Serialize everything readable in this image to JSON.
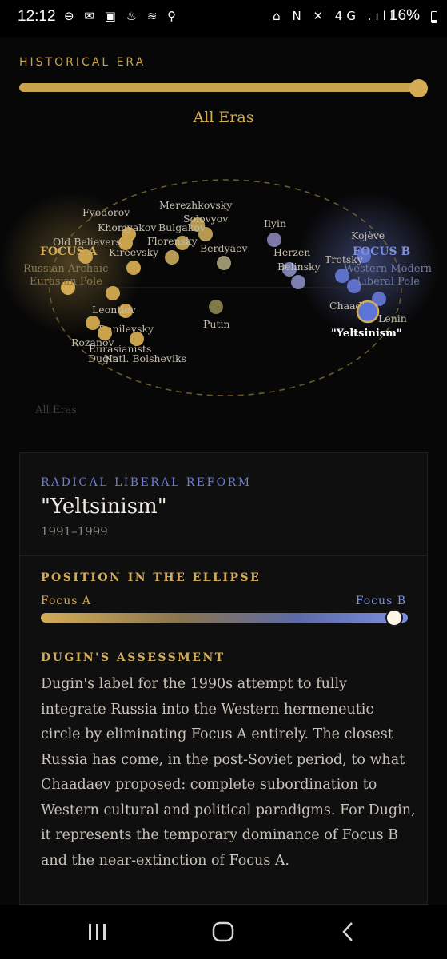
{
  "status_bar": {
    "time": "12:12",
    "left_icons": "⊖ ✉ ▣ ♨ ≋ ⚲",
    "right_icons": "⌂ N ✕ 4G .ıll",
    "battery": "16%"
  },
  "era": {
    "label": "HISTORICAL ERA",
    "selected": "All Eras",
    "slider_fraction": 1.0
  },
  "ellipse": {
    "corner_label": "All Eras",
    "focus_a_label": "FOCUS A",
    "focus_b_label": "FOCUS B",
    "pole_a_lines": [
      "Russian Archaic",
      "Eurasian Pole"
    ],
    "pole_b_lines": [
      "Western Modern",
      "Liberal Pole"
    ],
    "gold_color": "#d3ac55",
    "blue_color": "#7c8ee0",
    "node_labels": [
      "Fyodorov",
      "Merezhkovsky",
      "Solovyov",
      "Khomyakov",
      "Bulgakov",
      "Old Believers",
      "Florensky",
      "Kireevsky",
      "Berdyaev",
      "Ilyin",
      "Kojève",
      "Herzen",
      "Trotsky",
      "Belinsky",
      "Leontiev",
      "Danilevsky",
      "Putin",
      "Chaadaev",
      "Lenin",
      "\"Yeltsinism\"",
      "Rozanov",
      "Eurasianists",
      "Dugin",
      "Natl. Bolsheviks"
    ]
  },
  "card": {
    "category": "RADICAL LIBERAL REFORM",
    "title": "\"Yeltsinism\"",
    "years": "1991–1999",
    "position_heading": "POSITION IN THE ELLIPSE",
    "focus_a": "Focus A",
    "focus_b": "Focus B",
    "position_fraction": 0.96,
    "assessment_heading": "DUGIN'S ASSESSMENT",
    "assessment": "Dugin's label for the 1990s attempt to fully integrate Russia into the Western hermeneutic circle by eliminating Focus A entirely. The closest Russia has come, in the post-Soviet period, to what Chaadaev proposed: complete subordination to Western cultural and political paradigms. For Dugin, it represents the temporary dominance of Focus B and the near-extinction of Focus A."
  },
  "nav": {
    "recents_icon": "recents-icon",
    "home_icon": "home-icon",
    "back_icon": "back-icon"
  }
}
